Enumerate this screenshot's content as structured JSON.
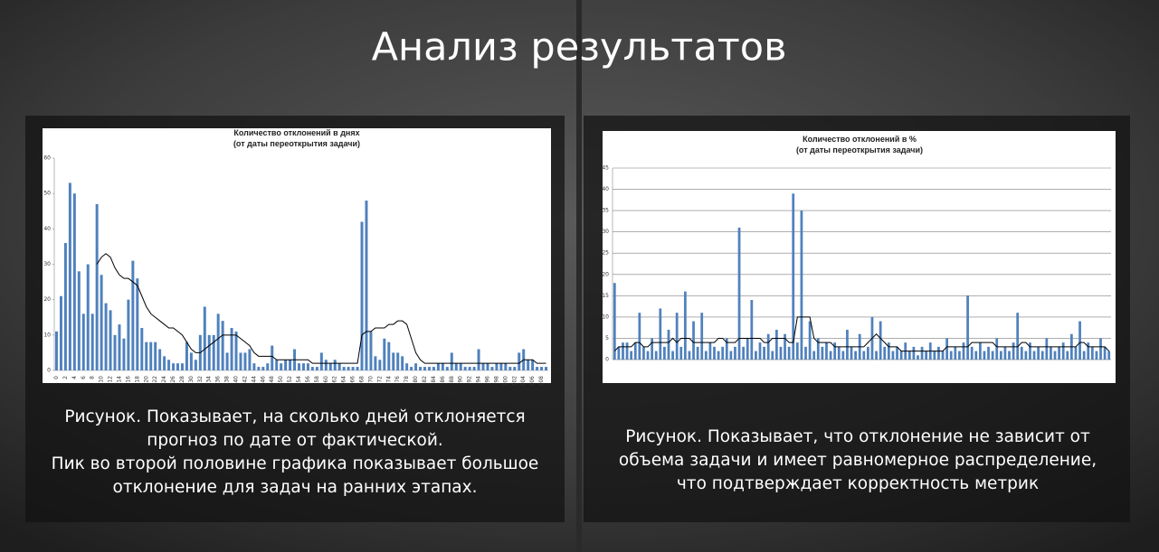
{
  "header": {
    "title": "Анализ результатов"
  },
  "chart_data": [
    {
      "type": "bar",
      "title": "Количество отклонений в днях",
      "subtitle": "(от даты переоткрытия задачи)",
      "categories": [
        "0",
        null,
        "2",
        null,
        "4",
        null,
        "6",
        null,
        "8",
        null,
        "10",
        null,
        "12",
        null,
        "14",
        null,
        "16",
        null,
        "18",
        null,
        "20",
        null,
        "22",
        null,
        "24",
        null,
        "26",
        null,
        "28",
        null,
        "30",
        null,
        "32",
        null,
        "34",
        null,
        "36",
        null,
        "38",
        null,
        "40",
        null,
        "42",
        null,
        "44",
        null,
        "46",
        null,
        "48",
        null,
        "50",
        null,
        "52",
        null,
        "54",
        null,
        "56",
        null,
        "58",
        null,
        "60",
        null,
        "62",
        null,
        "64",
        null,
        "66",
        null,
        "68",
        null,
        "70",
        null,
        "72",
        null,
        "74",
        null,
        "76",
        null,
        "78",
        null,
        "80",
        null,
        "82",
        null,
        "84",
        null,
        "86",
        null,
        "88",
        null,
        "90",
        null,
        "92",
        null,
        "94",
        null,
        "96",
        null,
        "98",
        null,
        "100",
        null,
        "102",
        null,
        "104",
        null,
        "106",
        null,
        "108",
        null
      ],
      "series": [
        {
          "type": "bar",
          "color": "#4f81bd",
          "values": [
            11,
            21,
            36,
            53,
            50,
            28,
            16,
            30,
            16,
            47,
            27,
            19,
            17,
            10,
            13,
            9,
            20,
            31,
            26,
            12,
            8,
            8,
            8,
            6,
            4,
            3,
            2,
            2,
            2,
            8,
            5,
            3,
            10,
            18,
            10,
            10,
            16,
            14,
            5,
            12,
            11,
            5,
            5,
            6,
            2,
            1,
            1,
            2,
            7,
            3,
            2,
            3,
            3,
            6,
            2,
            2,
            2,
            1,
            1,
            5,
            3,
            2,
            3,
            2,
            1,
            1,
            1,
            1,
            42,
            48,
            11,
            4,
            3,
            9,
            8,
            5,
            5,
            4,
            2,
            1,
            2,
            1,
            1,
            1,
            1,
            2,
            2,
            1,
            5,
            2,
            2,
            1,
            1,
            1,
            6,
            2,
            2,
            1,
            2,
            2,
            2,
            1,
            1,
            5,
            6,
            3,
            3,
            1,
            1,
            1
          ]
        },
        {
          "type": "line",
          "color": "#000000",
          "values": [
            null,
            null,
            null,
            null,
            null,
            null,
            null,
            null,
            null,
            30,
            32,
            33,
            32,
            29,
            27,
            26,
            26,
            25,
            24,
            21,
            18,
            16,
            15,
            14,
            13,
            12,
            12,
            11,
            10,
            8,
            6,
            5,
            5,
            6,
            7,
            8,
            9,
            10,
            10,
            10,
            10,
            9,
            8,
            7,
            5,
            4,
            4,
            4,
            4,
            3,
            3,
            3,
            3,
            3,
            3,
            3,
            3,
            2,
            2,
            2,
            2,
            2,
            2,
            2,
            2,
            2,
            2,
            2,
            10,
            11,
            11,
            12,
            12,
            12,
            13,
            13,
            14,
            14,
            13,
            9,
            5,
            3,
            2,
            2,
            2,
            2,
            2,
            2,
            2,
            2,
            2,
            2,
            2,
            2,
            2,
            2,
            2,
            2,
            2,
            2,
            2,
            2,
            2,
            2,
            3,
            3,
            3,
            2,
            2,
            2
          ]
        }
      ],
      "ylim": [
        0,
        60
      ],
      "yticks": [
        0,
        10,
        20,
        30,
        40,
        50,
        60
      ],
      "grid": false
    },
    {
      "type": "bar",
      "title": "Количество отклонений в %",
      "subtitle": "(от даты переоткрытия задачи)",
      "categories": [
        null,
        null,
        null,
        null,
        null,
        null,
        null,
        null,
        null,
        null,
        null,
        null,
        null,
        null,
        null,
        null,
        null,
        null,
        null,
        null,
        null,
        null,
        null,
        null,
        null,
        null,
        null,
        null,
        null,
        null,
        null,
        null,
        null,
        null,
        null,
        null,
        null,
        null,
        null,
        null,
        null,
        null,
        null,
        null,
        null,
        null,
        null,
        null,
        null,
        null,
        null,
        null,
        null,
        null,
        null,
        null,
        null,
        null,
        null,
        null,
        null,
        null,
        null,
        null,
        null,
        null,
        null,
        null,
        null,
        null,
        null,
        null,
        null,
        null,
        null,
        null,
        null,
        null,
        null,
        null,
        null,
        null,
        null,
        null,
        null,
        null,
        null,
        null,
        null,
        null,
        null,
        null,
        null,
        null,
        null,
        null,
        null,
        null,
        null,
        null,
        null,
        null,
        null,
        null,
        null,
        null,
        null,
        null,
        null,
        null,
        null,
        null,
        null,
        null,
        null,
        null,
        null,
        null,
        null,
        null
      ],
      "series": [
        {
          "type": "bar",
          "color": "#4f81bd",
          "values": [
            18,
            3,
            4,
            4,
            2,
            4,
            11,
            3,
            2,
            5,
            2,
            12,
            3,
            7,
            2,
            11,
            3,
            16,
            2,
            9,
            3,
            11,
            2,
            4,
            3,
            2,
            3,
            5,
            2,
            3,
            31,
            3,
            5,
            14,
            2,
            4,
            3,
            6,
            2,
            7,
            3,
            6,
            3,
            39,
            4,
            35,
            3,
            9,
            2,
            5,
            3,
            4,
            2,
            4,
            3,
            2,
            7,
            3,
            2,
            6,
            2,
            3,
            10,
            2,
            9,
            3,
            4,
            2,
            3,
            2,
            4,
            2,
            3,
            1,
            3,
            2,
            4,
            2,
            3,
            2,
            5,
            2,
            3,
            2,
            4,
            15,
            3,
            2,
            4,
            2,
            3,
            2,
            5,
            2,
            3,
            2,
            4,
            11,
            3,
            2,
            4,
            2,
            3,
            2,
            5,
            3,
            2,
            3,
            4,
            2,
            6,
            3,
            9,
            2,
            4,
            3,
            2,
            5,
            3,
            2
          ]
        },
        {
          "type": "line",
          "color": "#000000",
          "values": [
            2,
            3,
            3,
            3,
            3,
            4,
            4,
            3,
            3,
            4,
            4,
            4,
            4,
            4,
            5,
            4,
            5,
            5,
            5,
            4,
            4,
            4,
            4,
            4,
            4,
            5,
            5,
            4,
            4,
            4,
            5,
            5,
            5,
            5,
            5,
            5,
            4,
            4,
            5,
            5,
            5,
            5,
            4,
            4,
            10,
            10,
            10,
            10,
            5,
            4,
            4,
            4,
            4,
            3,
            3,
            3,
            3,
            3,
            3,
            3,
            3,
            4,
            5,
            6,
            5,
            4,
            3,
            3,
            3,
            2,
            2,
            2,
            2,
            2,
            2,
            2,
            2,
            2,
            2,
            2,
            3,
            3,
            3,
            3,
            3,
            3,
            4,
            4,
            4,
            4,
            4,
            4,
            3,
            3,
            3,
            3,
            3,
            3,
            4,
            4,
            3,
            3,
            3,
            3,
            3,
            3,
            3,
            3,
            3,
            3,
            3,
            3,
            4,
            4,
            3,
            3,
            3,
            3,
            3,
            2
          ]
        }
      ],
      "ylim": [
        0,
        45
      ],
      "yticks": [
        0,
        5,
        10,
        15,
        20,
        25,
        30,
        35,
        40,
        45
      ],
      "grid": true
    }
  ],
  "captions": [
    [
      "Рисунок. Показывает, на сколько дней отклоняется",
      "прогноз по дате от фактической.",
      "Пик во второй половине графика показывает большое",
      "отклонение для задач на ранних этапах."
    ],
    [
      "Рисунок. Показывает, что отклонение не зависит от",
      "объема задачи и имеет равномерное распределение,",
      "что подтверждает корректность метрик"
    ]
  ]
}
